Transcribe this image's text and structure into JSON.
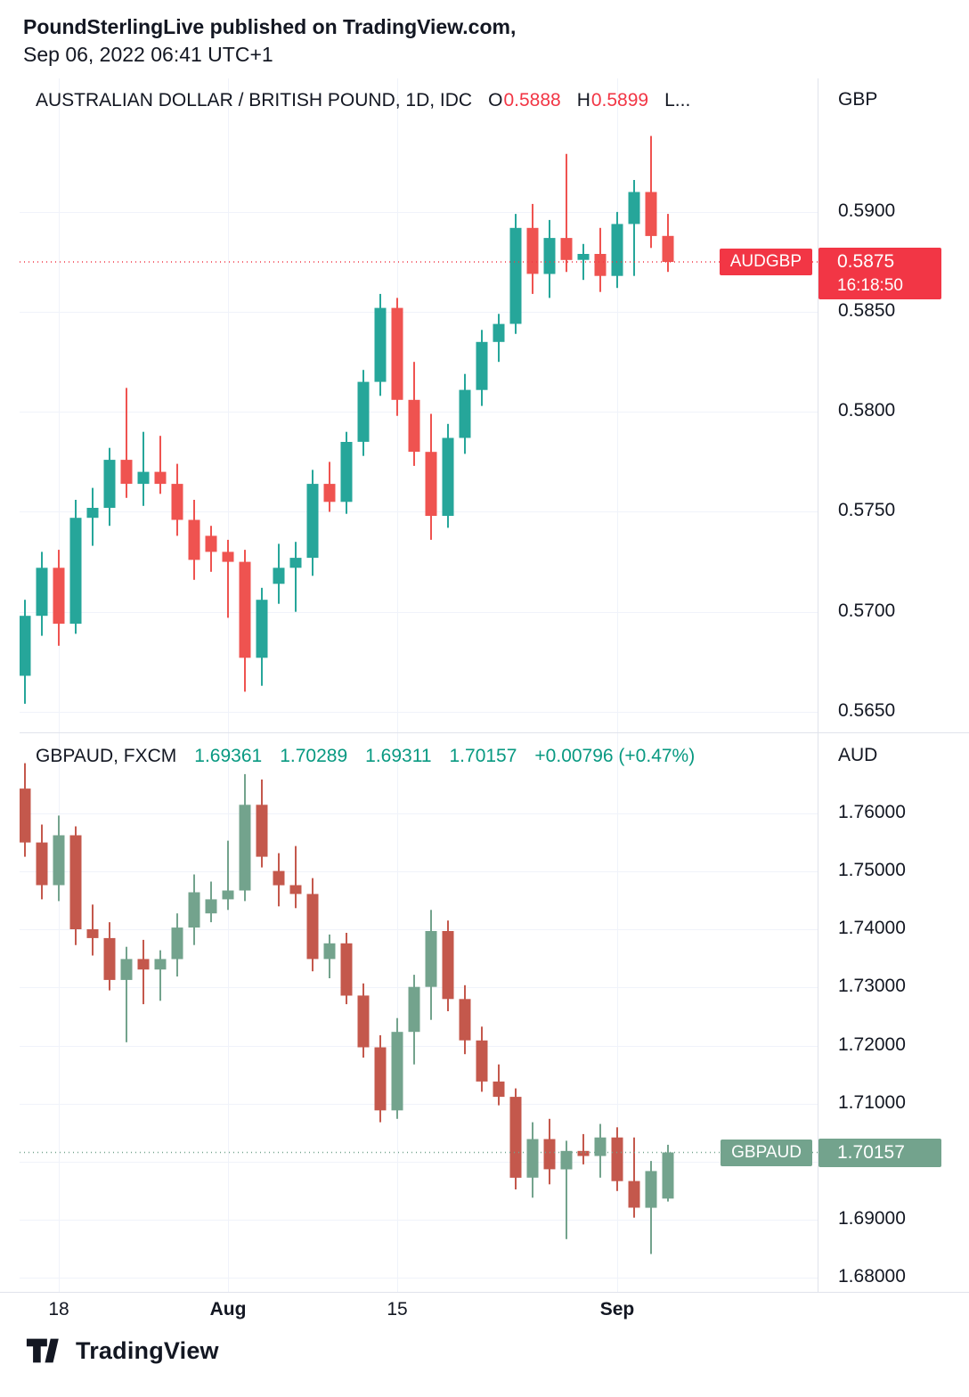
{
  "header": {
    "line1": "PoundSterlingLive published on TradingView.com,",
    "line2": "Sep 06, 2022 06:41 UTC+1"
  },
  "footer": {
    "brand": "TradingView"
  },
  "colors": {
    "text": "#131722",
    "grid": "#f0f3fa",
    "border": "#e0e3eb",
    "accent_red": "#f23645",
    "legend_green": "#089981",
    "top_up": "#26a69a",
    "top_down": "#ef5350",
    "bottom_up": "#73a38d",
    "bottom_down": "#c4584c"
  },
  "time_axis": {
    "labels": [
      {
        "text": "18",
        "candle_index": 2,
        "bold": false
      },
      {
        "text": "Aug",
        "candle_index": 12,
        "bold": true
      },
      {
        "text": "15",
        "candle_index": 22,
        "bold": false
      },
      {
        "text": "Sep",
        "candle_index": 35,
        "bold": true
      }
    ]
  },
  "chart_data": [
    {
      "type": "candlestick",
      "symbol": "AUDGBP",
      "timeframe": "1D",
      "axis_title": "GBP",
      "legend": {
        "title": "AUSTRALIAN DOLLAR / BRITISH POUND, 1D, IDC",
        "open_label": "O",
        "open": "0.5888",
        "high_label": "H",
        "high": "0.5899",
        "low_label": "L..."
      },
      "up_color": "#26a69a",
      "down_color": "#ef5350",
      "ylim": [
        0.56397,
        0.59668
      ],
      "price_ticks": [
        {
          "price": 0.59,
          "label": "0.5900"
        },
        {
          "price": 0.585,
          "label": "0.5850"
        },
        {
          "price": 0.58,
          "label": "0.5800"
        },
        {
          "price": 0.575,
          "label": "0.5750"
        },
        {
          "price": 0.57,
          "label": "0.5700"
        },
        {
          "price": 0.565,
          "label": "0.5650"
        }
      ],
      "last_price": {
        "symbol": "AUDGBP",
        "price": 0.5875,
        "value_label": "0.5875",
        "time_label": "16:18:50",
        "badge_color": "#f23645"
      },
      "candles": [
        [
          0.5668,
          0.5706,
          0.5654,
          0.5698
        ],
        [
          0.5698,
          0.573,
          0.5688,
          0.5722
        ],
        [
          0.5722,
          0.5731,
          0.5683,
          0.5694
        ],
        [
          0.5694,
          0.5756,
          0.5689,
          0.5747
        ],
        [
          0.5747,
          0.5762,
          0.5733,
          0.5752
        ],
        [
          0.5752,
          0.5782,
          0.5743,
          0.5776
        ],
        [
          0.5776,
          0.5812,
          0.5757,
          0.5764
        ],
        [
          0.5764,
          0.579,
          0.5753,
          0.577
        ],
        [
          0.577,
          0.5788,
          0.5759,
          0.5764
        ],
        [
          0.5764,
          0.5774,
          0.5738,
          0.5746
        ],
        [
          0.5746,
          0.5756,
          0.5716,
          0.5726
        ],
        [
          0.5738,
          0.5743,
          0.572,
          0.573
        ],
        [
          0.573,
          0.5736,
          0.5697,
          0.5725
        ],
        [
          0.5725,
          0.5731,
          0.566,
          0.5677
        ],
        [
          0.5677,
          0.5712,
          0.5663,
          0.5706
        ],
        [
          0.5714,
          0.5734,
          0.5704,
          0.5722
        ],
        [
          0.5722,
          0.5735,
          0.57,
          0.5727
        ],
        [
          0.5727,
          0.5771,
          0.5718,
          0.5764
        ],
        [
          0.5764,
          0.5775,
          0.575,
          0.5755
        ],
        [
          0.5755,
          0.579,
          0.5749,
          0.5785
        ],
        [
          0.5785,
          0.5821,
          0.5778,
          0.5815
        ],
        [
          0.5815,
          0.5859,
          0.5808,
          0.5852
        ],
        [
          0.5852,
          0.5857,
          0.5798,
          0.5806
        ],
        [
          0.5806,
          0.5825,
          0.5773,
          0.578
        ],
        [
          0.578,
          0.5799,
          0.5736,
          0.5748
        ],
        [
          0.5748,
          0.5794,
          0.5742,
          0.5787
        ],
        [
          0.5787,
          0.5819,
          0.5779,
          0.5811
        ],
        [
          0.5811,
          0.5841,
          0.5803,
          0.5835
        ],
        [
          0.5835,
          0.5849,
          0.5825,
          0.5844
        ],
        [
          0.5844,
          0.5899,
          0.5839,
          0.5892
        ],
        [
          0.5892,
          0.5904,
          0.5859,
          0.5869
        ],
        [
          0.5869,
          0.5896,
          0.5857,
          0.5887
        ],
        [
          0.5887,
          0.5929,
          0.587,
          0.5876
        ],
        [
          0.5876,
          0.5884,
          0.5866,
          0.5879
        ],
        [
          0.5879,
          0.5892,
          0.586,
          0.5868
        ],
        [
          0.5868,
          0.59,
          0.5862,
          0.5894
        ],
        [
          0.5894,
          0.5916,
          0.5868,
          0.591
        ],
        [
          0.591,
          0.5938,
          0.5882,
          0.5888
        ],
        [
          0.5888,
          0.5899,
          0.587,
          0.5875
        ]
      ]
    },
    {
      "type": "candlestick",
      "symbol": "GBPAUD",
      "timeframe": "1D",
      "axis_title": "AUD",
      "legend": {
        "title": "GBPAUD, FXCM",
        "open": "1.69361",
        "high": "1.70289",
        "low": "1.69311",
        "close": "1.70157",
        "change": "+0.00796 (+0.47%)"
      },
      "up_color": "#73a38d",
      "down_color": "#c4584c",
      "ylim": [
        1.67754,
        1.77398
      ],
      "price_ticks": [
        {
          "price": 1.76,
          "label": "1.76000"
        },
        {
          "price": 1.75,
          "label": "1.75000"
        },
        {
          "price": 1.74,
          "label": "1.74000"
        },
        {
          "price": 1.73,
          "label": "1.73000"
        },
        {
          "price": 1.72,
          "label": "1.72000"
        },
        {
          "price": 1.71,
          "label": "1.71000"
        },
        {
          "price": 1.7,
          "label": "1.70000"
        },
        {
          "price": 1.69,
          "label": "1.69000"
        },
        {
          "price": 1.68,
          "label": "1.68000"
        }
      ],
      "last_price": {
        "symbol": "GBPAUD",
        "price": 1.70157,
        "value_label": "1.70157",
        "time_label": "",
        "badge_color": "#73a38d"
      },
      "candles": [
        [
          1.76429,
          1.76866,
          1.75254,
          1.755
        ],
        [
          1.755,
          1.75809,
          1.7452,
          1.74764
        ],
        [
          1.74764,
          1.75963,
          1.74489,
          1.75624
        ],
        [
          1.75624,
          1.75778,
          1.73732,
          1.74004
        ],
        [
          1.74004,
          1.74429,
          1.73551,
          1.73852
        ],
        [
          1.73852,
          1.74125,
          1.7295,
          1.7313
        ],
        [
          1.7313,
          1.73702,
          1.72057,
          1.73491
        ],
        [
          1.73491,
          1.73822,
          1.72712,
          1.7331
        ],
        [
          1.7331,
          1.73641,
          1.72771,
          1.73491
        ],
        [
          1.73491,
          1.74277,
          1.7319,
          1.74034
        ],
        [
          1.74034,
          1.74948,
          1.73732,
          1.74642
        ],
        [
          1.74277,
          1.74825,
          1.74125,
          1.7452
        ],
        [
          1.7452,
          1.75531,
          1.74338,
          1.74672
        ],
        [
          1.74672,
          1.76678,
          1.74489,
          1.76149
        ],
        [
          1.76149,
          1.76585,
          1.7507,
          1.75254
        ],
        [
          1.75009,
          1.75316,
          1.74399,
          1.74764
        ],
        [
          1.74764,
          1.75439,
          1.74368,
          1.74612
        ],
        [
          1.74612,
          1.74886,
          1.7328,
          1.73491
        ],
        [
          1.73491,
          1.73913,
          1.7316,
          1.73762
        ],
        [
          1.73762,
          1.73943,
          1.72712,
          1.72861
        ],
        [
          1.72861,
          1.7307,
          1.71792,
          1.71969
        ],
        [
          1.71969,
          1.72176,
          1.70678,
          1.70882
        ],
        [
          1.70882,
          1.72473,
          1.70736,
          1.72235
        ],
        [
          1.72235,
          1.7322,
          1.71674,
          1.7301
        ],
        [
          1.7301,
          1.74338,
          1.72443,
          1.73973
        ],
        [
          1.73973,
          1.74155,
          1.72592,
          1.72801
        ],
        [
          1.72801,
          1.7304,
          1.71851,
          1.72088
        ],
        [
          1.72088,
          1.72325,
          1.71203,
          1.7138
        ],
        [
          1.7138,
          1.71674,
          1.7097,
          1.71116
        ],
        [
          1.71116,
          1.71262,
          1.6952,
          1.69722
        ],
        [
          1.69722,
          1.70678,
          1.69377,
          1.70387
        ],
        [
          1.70387,
          1.70736,
          1.69607,
          1.69866
        ],
        [
          1.69866,
          1.70358,
          1.68663,
          1.70184
        ],
        [
          1.70184,
          1.70474,
          1.69952,
          1.70097
        ],
        [
          1.70097,
          1.70648,
          1.69722,
          1.70416
        ],
        [
          1.70416,
          1.7059,
          1.69492,
          1.69664
        ],
        [
          1.69664,
          1.70416,
          1.69033,
          1.69205
        ],
        [
          1.69205,
          1.7001,
          1.68407,
          1.69837
        ],
        [
          1.69361,
          1.70289,
          1.69311,
          1.70157
        ]
      ]
    }
  ]
}
